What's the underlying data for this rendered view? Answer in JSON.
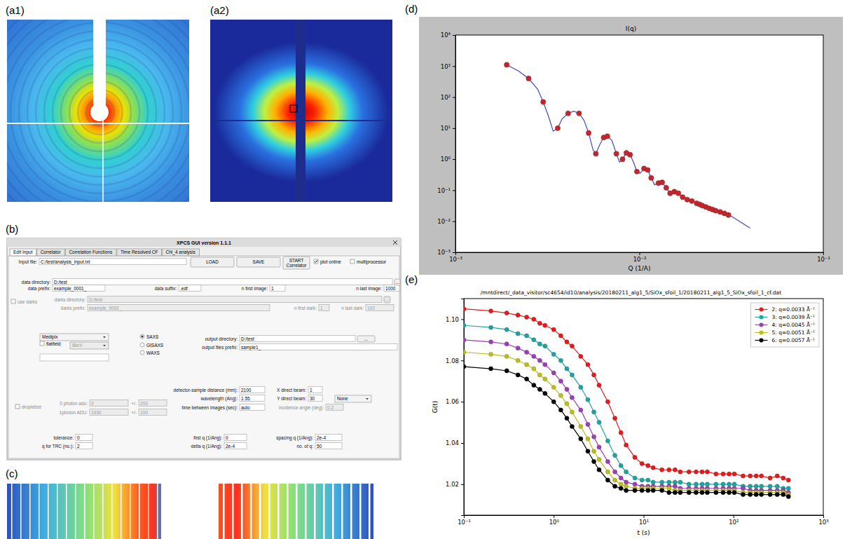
{
  "panel_labels": [
    "(a1)",
    "(a2)",
    "(b)",
    "(c)",
    "(d)",
    "(e)"
  ],
  "gui": {
    "title": "XPCS GUI version 1.1.1",
    "tabs": [
      "Edit Input",
      "Correlator",
      "Correlation Functions",
      "Time Resolved CF",
      "Chi_4 analysis"
    ],
    "fields": [
      {
        "label": "Input file:",
        "value": "C:/test/analysis_input.txt"
      },
      {
        "label": "data directory:",
        "value": "D:/test"
      },
      {
        "label": "data prefix:",
        "value": "example_0001_"
      },
      {
        "label": "data suffix:",
        "value": ".edf"
      },
      {
        "label": "n first image:",
        "value": "1"
      },
      {
        "label": "n last image:",
        "value": "1000"
      },
      {
        "label": "darks directory:",
        "value": "D:/test"
      },
      {
        "label": "darks prefix:",
        "value": "example_0002_"
      },
      {
        "label": "n first dark:",
        "value": "1"
      },
      {
        "label": "n last dark:",
        "value": "100"
      },
      {
        "label": "output directory:",
        "value": "D:/test"
      },
      {
        "label": "output files prefix:",
        "value": "sample1_"
      },
      {
        "label": "0 photon adu:",
        "value": "0"
      },
      {
        "label": "+/-",
        "value": "200"
      },
      {
        "label": "1photon ADU:",
        "value": "1930"
      },
      {
        "label": "+/-",
        "value": "100"
      },
      {
        "label": "detector-sample distance (mm):",
        "value": "2100"
      },
      {
        "label": "X direct beam:",
        "value": "1"
      },
      {
        "label": "wavelength (Ang):",
        "value": "1.55"
      },
      {
        "label": "Y direct beam:",
        "value": "30"
      },
      {
        "label": "time between images (sec):",
        "value": "auto"
      },
      {
        "label": "incidence angle (deg):",
        "value": "0.2"
      },
      {
        "label": "tolerance:",
        "value": "0"
      },
      {
        "label": "first q (1/Ang):",
        "value": "0"
      },
      {
        "label": "spacing q (1/Ang):",
        "value": "2e-4"
      },
      {
        "label": "q for TRC (no.):",
        "value": "2"
      },
      {
        "label": "delta q (1/Ang):",
        "value": "2e-4"
      },
      {
        "label": "no. of q:",
        "value": "50"
      }
    ],
    "buttons": [
      "LOAD",
      "SAVE",
      "START Correlator",
      "...",
      "...",
      "..."
    ],
    "checks": [
      {
        "label": "plot online",
        "checked": true
      },
      {
        "label": "multiprocessor",
        "checked": false
      },
      {
        "label": "use darks",
        "checked": false
      },
      {
        "label": "flatfield",
        "checked": false
      },
      {
        "label": "dropletize",
        "checked": false
      }
    ],
    "radios": [
      {
        "label": "SAXS",
        "selected": true
      },
      {
        "label": "GISAXS",
        "selected": false
      },
      {
        "label": "WAXS",
        "selected": false
      }
    ],
    "combos": [
      "Medipix",
      "8keV",
      "None"
    ]
  },
  "chart_data": [
    {
      "type": "scatter",
      "title": "I(q)",
      "xlabel": "Q (1/A)",
      "log": true,
      "grid": false,
      "xlim": [
        0.001,
        0.1
      ],
      "ylim": [
        0.001,
        10000
      ],
      "xticks": [
        {
          "value": 0.001,
          "label": "10⁻³"
        },
        {
          "value": 0.01,
          "label": "10⁻²"
        },
        {
          "value": 0.1,
          "label": "10⁻¹"
        }
      ],
      "yticks": [
        {
          "value": 0.001,
          "label": "10⁻³"
        },
        {
          "value": 0.01,
          "label": "10⁻²"
        },
        {
          "value": 0.1,
          "label": "10⁻¹"
        },
        {
          "value": 1,
          "label": "10⁰"
        },
        {
          "value": 10,
          "label": "10¹"
        },
        {
          "value": 100,
          "label": "10²"
        },
        {
          "value": 1000,
          "label": "10³"
        },
        {
          "value": 10000,
          "label": "10⁴"
        }
      ],
      "series": [
        {
          "type": "scatter",
          "marker": "circle",
          "color": "#c0282e",
          "x": [
            0.0019,
            0.0025,
            0.003,
            0.0036,
            0.0041,
            0.0047,
            0.0053,
            0.0058,
            0.0064,
            0.0067,
            0.0075,
            0.0081,
            0.0085,
            0.0089,
            0.0097,
            0.0106,
            0.0111,
            0.0116,
            0.0127,
            0.0133,
            0.014,
            0.0147,
            0.0155,
            0.0163,
            0.0172,
            0.0182,
            0.0193,
            0.0205,
            0.0213,
            0.022,
            0.023,
            0.024,
            0.025,
            0.026,
            0.0275,
            0.029,
            0.0305
          ],
          "values": [
            1100,
            400,
            70,
            10,
            30,
            30,
            7,
            1.5,
            5,
            5.5,
            1.5,
            1.0,
            1.6,
            1.4,
            0.4,
            0.5,
            0.45,
            0.25,
            0.17,
            0.18,
            0.12,
            0.08,
            0.09,
            0.08,
            0.06,
            0.05,
            0.045,
            0.038,
            0.035,
            0.032,
            0.029,
            0.026,
            0.024,
            0.022,
            0.02,
            0.018,
            0.016
          ]
        },
        {
          "type": "line",
          "color": "#4545c0",
          "x": [
            0.0019,
            0.0022,
            0.0025,
            0.0028,
            0.003,
            0.0032,
            0.0034,
            0.0036,
            0.0038,
            0.0041,
            0.0044,
            0.0047,
            0.005,
            0.0053,
            0.0056,
            0.0058,
            0.0061,
            0.0064,
            0.0067,
            0.0071,
            0.0075,
            0.0078,
            0.0081,
            0.0085,
            0.0089,
            0.0093,
            0.0097,
            0.0101,
            0.0106,
            0.0111,
            0.0116,
            0.0121,
            0.0127,
            0.0133,
            0.014,
            0.0147,
            0.0155,
            0.0163,
            0.0172,
            0.0182,
            0.0193,
            0.0205,
            0.022,
            0.024,
            0.026,
            0.029,
            0.032,
            0.036,
            0.04
          ],
          "values": [
            1100,
            700,
            400,
            180,
            70,
            25,
            8,
            10,
            20,
            30,
            35,
            30,
            18,
            7,
            2,
            1.5,
            3,
            5,
            5.5,
            4,
            1.5,
            0.8,
            1.0,
            1.6,
            1.4,
            0.8,
            0.4,
            0.35,
            0.5,
            0.45,
            0.25,
            0.15,
            0.17,
            0.18,
            0.12,
            0.08,
            0.09,
            0.08,
            0.06,
            0.05,
            0.045,
            0.038,
            0.032,
            0.026,
            0.022,
            0.018,
            0.014,
            0.009,
            0.006
          ]
        }
      ]
    },
    {
      "type": "line",
      "title": "/mntdirect/_data_visitor/sc4654/id10/analysis/20180211_alg1_5/SiOx_sfoil_1/20180211_alg1_5_SiOx_sfoil_1_cf.dat",
      "xlabel": "t (s)",
      "ylabel": "G(t)",
      "log": "x",
      "grid": false,
      "legend": "upper right",
      "xlim": [
        0.1,
        1000
      ],
      "ylim": [
        1.005,
        1.11
      ],
      "xticks": [
        {
          "value": 0.1,
          "label": "10⁻¹"
        },
        {
          "value": 1,
          "label": "10⁰"
        },
        {
          "value": 10,
          "label": "10¹"
        },
        {
          "value": 100,
          "label": "10²"
        },
        {
          "value": 1000,
          "label": "10³"
        }
      ],
      "yticks": [
        1.02,
        1.04,
        1.06,
        1.08,
        {
          "value": 1.1,
          "label": "1.10"
        }
      ],
      "x": [
        0.1,
        0.2,
        0.3,
        0.4,
        0.5,
        0.6,
        0.7,
        0.8,
        1.0,
        1.2,
        1.4,
        1.6,
        2.0,
        2.4,
        2.8,
        3.2,
        4.0,
        4.8,
        5.6,
        6.4,
        8,
        9.6,
        11.2,
        12.8,
        16,
        19.2,
        22.4,
        25.6,
        32,
        38.4,
        44.8,
        51.2,
        64,
        76.8,
        89.6,
        102.4,
        128,
        153.6,
        179.2,
        204.8,
        256,
        307.2,
        358.4,
        409.6
      ],
      "series": [
        {
          "name": "2: q=0.0033 Å⁻¹",
          "color": "#e41a1c",
          "marker": "circle",
          "values": [
            1.105,
            1.104,
            1.103,
            1.102,
            1.101,
            1.1,
            1.098,
            1.097,
            1.095,
            1.092,
            1.089,
            1.087,
            1.082,
            1.078,
            1.073,
            1.068,
            1.06,
            1.052,
            1.045,
            1.039,
            1.033,
            1.03,
            1.029,
            1.028,
            1.027,
            1.027,
            1.027,
            1.026,
            1.026,
            1.026,
            1.026,
            1.026,
            1.025,
            1.025,
            1.025,
            1.025,
            1.024,
            1.024,
            1.024,
            1.024,
            1.023,
            1.024,
            1.023,
            1.022
          ]
        },
        {
          "name": "3: q=0.0039 Å⁻¹",
          "color": "#20a39e",
          "marker": "circle",
          "values": [
            1.097,
            1.096,
            1.095,
            1.093,
            1.092,
            1.09,
            1.088,
            1.087,
            1.083,
            1.08,
            1.076,
            1.073,
            1.067,
            1.061,
            1.055,
            1.05,
            1.041,
            1.034,
            1.029,
            1.026,
            1.023,
            1.022,
            1.022,
            1.021,
            1.021,
            1.021,
            1.021,
            1.021,
            1.02,
            1.02,
            1.02,
            1.02,
            1.02,
            1.02,
            1.02,
            1.02,
            1.019,
            1.019,
            1.019,
            1.019,
            1.019,
            1.019,
            1.018,
            1.018
          ]
        },
        {
          "name": "4: q=0.0045 Å⁻¹",
          "color": "#9b3fb5",
          "marker": "circle",
          "values": [
            1.09,
            1.089,
            1.088,
            1.086,
            1.084,
            1.082,
            1.08,
            1.078,
            1.074,
            1.07,
            1.066,
            1.062,
            1.056,
            1.049,
            1.043,
            1.038,
            1.031,
            1.026,
            1.023,
            1.021,
            1.02,
            1.019,
            1.019,
            1.019,
            1.019,
            1.019,
            1.019,
            1.018,
            1.018,
            1.018,
            1.018,
            1.018,
            1.018,
            1.018,
            1.018,
            1.018,
            1.018,
            1.017,
            1.017,
            1.017,
            1.017,
            1.017,
            1.017,
            1.016
          ]
        },
        {
          "name": "5: q=0.0051 Å⁻¹",
          "color": "#bcbd22",
          "marker": "circle",
          "values": [
            1.084,
            1.083,
            1.082,
            1.08,
            1.078,
            1.076,
            1.073,
            1.071,
            1.067,
            1.063,
            1.059,
            1.055,
            1.048,
            1.042,
            1.036,
            1.032,
            1.026,
            1.022,
            1.02,
            1.019,
            1.018,
            1.018,
            1.018,
            1.018,
            1.018,
            1.018,
            1.017,
            1.017,
            1.017,
            1.017,
            1.017,
            1.017,
            1.017,
            1.017,
            1.017,
            1.017,
            1.016,
            1.016,
            1.016,
            1.016,
            1.016,
            1.016,
            1.016,
            1.015
          ]
        },
        {
          "name": "6: q=0.0057 Å⁻¹",
          "color": "#000000",
          "marker": "circle",
          "values": [
            1.077,
            1.076,
            1.075,
            1.073,
            1.071,
            1.068,
            1.066,
            1.064,
            1.06,
            1.056,
            1.052,
            1.048,
            1.042,
            1.036,
            1.031,
            1.027,
            1.022,
            1.019,
            1.018,
            1.017,
            1.017,
            1.017,
            1.017,
            1.017,
            1.017,
            1.016,
            1.016,
            1.016,
            1.016,
            1.016,
            1.016,
            1.016,
            1.016,
            1.016,
            1.016,
            1.016,
            1.015,
            1.015,
            1.015,
            1.015,
            1.015,
            1.015,
            1.015,
            1.014
          ]
        }
      ]
    }
  ]
}
